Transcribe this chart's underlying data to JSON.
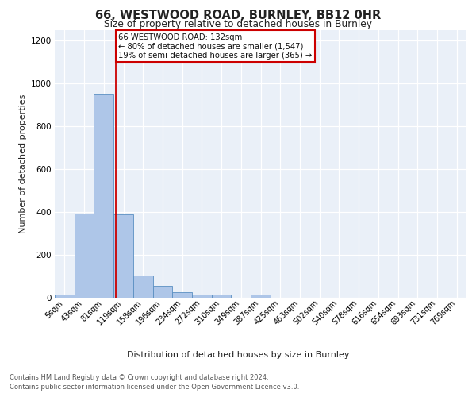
{
  "title1": "66, WESTWOOD ROAD, BURNLEY, BB12 0HR",
  "title2": "Size of property relative to detached houses in Burnley",
  "xlabel": "Distribution of detached houses by size in Burnley",
  "ylabel": "Number of detached properties",
  "categories": [
    "5sqm",
    "43sqm",
    "81sqm",
    "119sqm",
    "158sqm",
    "196sqm",
    "234sqm",
    "272sqm",
    "310sqm",
    "349sqm",
    "387sqm",
    "425sqm",
    "463sqm",
    "502sqm",
    "540sqm",
    "578sqm",
    "616sqm",
    "654sqm",
    "693sqm",
    "731sqm",
    "769sqm"
  ],
  "values": [
    15,
    393,
    950,
    390,
    105,
    55,
    25,
    15,
    13,
    0,
    13,
    0,
    0,
    0,
    0,
    0,
    0,
    0,
    0,
    0,
    0
  ],
  "bar_color": "#aec6e8",
  "bar_edge_color": "#5a8fc2",
  "annotation_text_line1": "66 WESTWOOD ROAD: 132sqm",
  "annotation_text_line2": "← 80% of detached houses are smaller (1,547)",
  "annotation_text_line3": "19% of semi-detached houses are larger (365) →",
  "annotation_box_color": "#ffffff",
  "annotation_box_edge_color": "#cc0000",
  "red_line_color": "#cc0000",
  "footer_line1": "Contains HM Land Registry data © Crown copyright and database right 2024.",
  "footer_line2": "Contains public sector information licensed under the Open Government Licence v3.0.",
  "ylim": [
    0,
    1250
  ],
  "yticks": [
    0,
    200,
    400,
    600,
    800,
    1000,
    1200
  ],
  "plot_bg_color": "#eaf0f8",
  "grid_color": "#ffffff",
  "red_line_x": 2.62
}
